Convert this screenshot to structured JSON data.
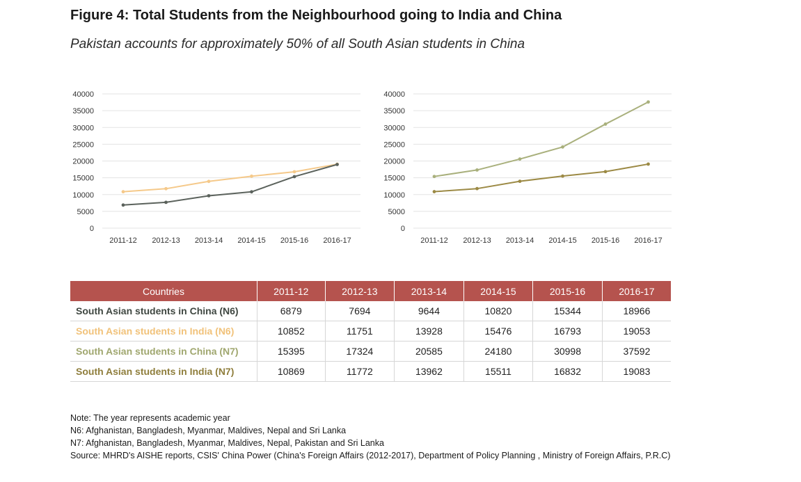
{
  "figure": {
    "title": "Figure 4: Total Students from the Neighbourhood going to India and China",
    "subtitle": "Pakistan accounts for approximately 50% of all South Asian students in China"
  },
  "colors": {
    "china_n6": "#5b625c",
    "india_n6": "#f5c98a",
    "china_n7": "#a9b07c",
    "india_n7": "#9c8a45",
    "header_bg": "#b5534e",
    "gridline": "#e3e3e3"
  },
  "chart_data": [
    {
      "type": "line",
      "title": "",
      "xlabel": "",
      "ylabel": "",
      "categories": [
        "2011-12",
        "2012-13",
        "2013-14",
        "2014-15",
        "2015-16",
        "2016-17"
      ],
      "yticks": [
        0,
        5000,
        10000,
        15000,
        20000,
        25000,
        30000,
        35000,
        40000
      ],
      "ylim": [
        0,
        40000
      ],
      "grid": true,
      "series": [
        {
          "name": "South Asian students in India (N6)",
          "color_key": "india_n6",
          "values": [
            10852,
            11751,
            13928,
            15476,
            16793,
            19053
          ]
        },
        {
          "name": "South Asian students in China (N6)",
          "color_key": "china_n6",
          "values": [
            6879,
            7694,
            9644,
            10820,
            15344,
            18966
          ]
        }
      ]
    },
    {
      "type": "line",
      "title": "",
      "xlabel": "",
      "ylabel": "",
      "categories": [
        "2011-12",
        "2012-13",
        "2013-14",
        "2014-15",
        "2015-16",
        "2016-17"
      ],
      "yticks": [
        0,
        5000,
        10000,
        15000,
        20000,
        25000,
        30000,
        35000,
        40000
      ],
      "ylim": [
        0,
        40000
      ],
      "grid": true,
      "series": [
        {
          "name": "South Asian students in China (N7)",
          "color_key": "china_n7",
          "values": [
            15395,
            17324,
            20585,
            24180,
            30998,
            37592
          ]
        },
        {
          "name": "South Asian students in India (N7)",
          "color_key": "india_n7",
          "values": [
            10869,
            11772,
            13962,
            15511,
            16832,
            19083
          ]
        }
      ]
    }
  ],
  "table": {
    "header": [
      "Countries",
      "2011-12",
      "2012-13",
      "2013-14",
      "2014-15",
      "2015-16",
      "2016-17"
    ],
    "rows": [
      {
        "label": "South Asian students in China (N6)",
        "color_key": "china_n6",
        "values": [
          "6879",
          "7694",
          "9644",
          "10820",
          "15344",
          "18966"
        ]
      },
      {
        "label": "South Asian students in India (N6)",
        "color_key": "india_n6",
        "values": [
          "10852",
          "11751",
          "13928",
          "15476",
          "16793",
          "19053"
        ]
      },
      {
        "label": "South Asian students in China (N7)",
        "color_key": "china_n7",
        "values": [
          "15395",
          "17324",
          "20585",
          "24180",
          "30998",
          "37592"
        ]
      },
      {
        "label": "South Asian students in India (N7)",
        "color_key": "india_n7",
        "values": [
          "10869",
          "11772",
          "13962",
          "15511",
          "16832",
          "19083"
        ]
      }
    ]
  },
  "notes": [
    "Note: The year represents academic year",
    "N6: Afghanistan, Bangladesh, Myanmar, Maldives, Nepal and Sri Lanka",
    "N7: Afghanistan, Bangladesh, Myanmar, Maldives, Nepal, Pakistan and Sri Lanka",
    "Source: MHRD's AISHE reports, CSIS' China Power (China's Foreign Affairs (2012-2017), Department of Policy Planning , Ministry of Foreign Affairs, P.R.C)"
  ]
}
